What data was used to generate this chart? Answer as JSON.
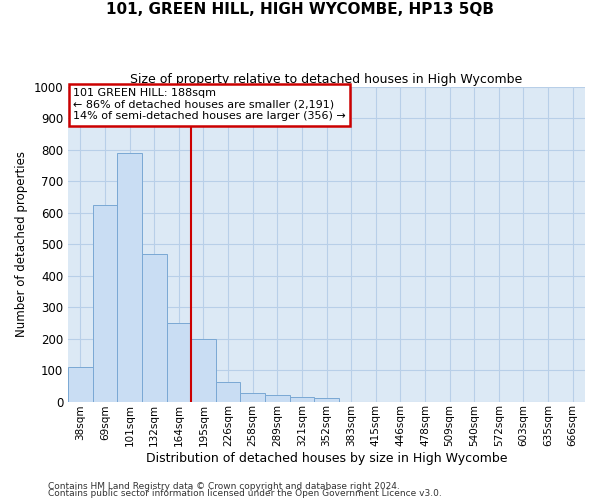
{
  "title": "101, GREEN HILL, HIGH WYCOMBE, HP13 5QB",
  "subtitle": "Size of property relative to detached houses in High Wycombe",
  "xlabel": "Distribution of detached houses by size in High Wycombe",
  "ylabel": "Number of detached properties",
  "bar_labels": [
    "38sqm",
    "69sqm",
    "101sqm",
    "132sqm",
    "164sqm",
    "195sqm",
    "226sqm",
    "258sqm",
    "289sqm",
    "321sqm",
    "352sqm",
    "383sqm",
    "415sqm",
    "446sqm",
    "478sqm",
    "509sqm",
    "540sqm",
    "572sqm",
    "603sqm",
    "635sqm",
    "666sqm"
  ],
  "bar_values": [
    110,
    625,
    790,
    470,
    250,
    200,
    62,
    28,
    20,
    15,
    10,
    0,
    0,
    0,
    0,
    0,
    0,
    0,
    0,
    0,
    0
  ],
  "bar_color": "#c9ddf3",
  "bar_edge_color": "#7aa8d4",
  "vline_color": "#cc0000",
  "ylim": [
    0,
    1000
  ],
  "yticks": [
    0,
    100,
    200,
    300,
    400,
    500,
    600,
    700,
    800,
    900,
    1000
  ],
  "annotation_title": "101 GREEN HILL: 188sqm",
  "annotation_line1": "← 86% of detached houses are smaller (2,191)",
  "annotation_line2": "14% of semi-detached houses are larger (356) →",
  "annotation_box_color": "#cc0000",
  "footer_line1": "Contains HM Land Registry data © Crown copyright and database right 2024.",
  "footer_line2": "Contains public sector information licensed under the Open Government Licence v3.0.",
  "plot_bg_color": "#dce9f5",
  "fig_bg_color": "#ffffff",
  "grid_color": "#b8cfe8"
}
